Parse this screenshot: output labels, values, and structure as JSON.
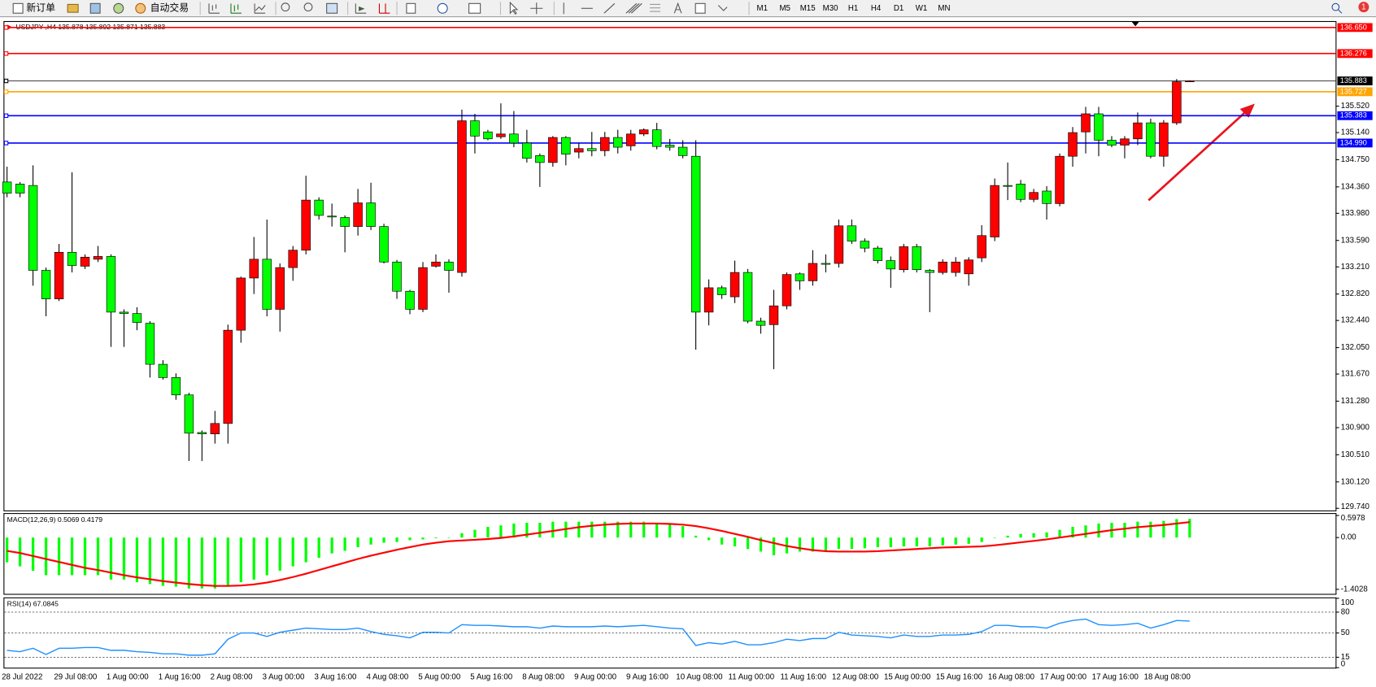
{
  "toolbar": {
    "new_order": "新订单",
    "auto_trading": "自动交易",
    "timeframes": [
      "M1",
      "M5",
      "M15",
      "M30",
      "H1",
      "H4",
      "D1",
      "W1",
      "MN"
    ],
    "notifications": 1
  },
  "chart_data": [
    {
      "type": "candlestick",
      "title": "USDJPY-,H4  135.878 135.892 135.871 135.883",
      "up_color": "#ff0000",
      "down_color": "#00ff00",
      "categories": [
        "28 Jul 2022",
        null,
        null,
        null,
        null,
        "29 Jul 08:00",
        null,
        null,
        null,
        "1 Aug 00:00",
        null,
        null,
        null,
        "1 Aug 16:00",
        null,
        null,
        null,
        "2 Aug 08:00",
        null,
        null,
        null,
        "3 Aug 00:00",
        null,
        null,
        null,
        "3 Aug 16:00",
        null,
        null,
        null,
        "4 Aug 08:00",
        null,
        null,
        null,
        "5 Aug 00:00",
        null,
        null,
        null,
        "5 Aug 16:00",
        null,
        null,
        null,
        "8 Aug 08:00",
        null,
        null,
        null,
        "9 Aug 00:00",
        null,
        null,
        null,
        "9 Aug 16:00",
        null,
        null,
        null,
        "10 Aug 08:00",
        null,
        null,
        null,
        "11 Aug 00:00",
        null,
        null,
        null,
        "11 Aug 16:00",
        null,
        null,
        null,
        "12 Aug 08:00",
        null,
        null,
        null,
        "15 Aug 00:00",
        null,
        null,
        null,
        "15 Aug 16:00",
        null,
        null,
        null,
        "16 Aug 08:00",
        null,
        null,
        null,
        "17 Aug 00:00",
        null,
        null,
        null,
        "17 Aug 16:00",
        null,
        null,
        null,
        "18 Aug 08:00",
        null,
        null
      ],
      "open": [
        134.43,
        134.4,
        134.38,
        133.16,
        132.75,
        133.42,
        133.22,
        133.32,
        133.36,
        132.56,
        132.54,
        132.4,
        131.81,
        131.62,
        131.37,
        130.83,
        130.81,
        130.96,
        132.3,
        133.05,
        133.32,
        132.6,
        133.2,
        133.45,
        134.17,
        133.94,
        133.92,
        133.79,
        134.13,
        133.79,
        133.28,
        132.86,
        132.6,
        133.22,
        133.28,
        133.13,
        135.31,
        135.15,
        135.08,
        135.12,
        134.99,
        134.81,
        134.71,
        135.07,
        134.86,
        134.91,
        134.88,
        135.07,
        134.95,
        135.12,
        135.18,
        134.96,
        134.93,
        134.8,
        132.56,
        132.91,
        132.78,
        133.13,
        132.43,
        132.38,
        132.65,
        133.11,
        133.01,
        133.26,
        133.26,
        133.8,
        133.58,
        133.48,
        133.3,
        133.17,
        133.5,
        133.16,
        133.13,
        133.13,
        133.11,
        133.34,
        133.64,
        134.38,
        134.4,
        134.18,
        134.3,
        134.12,
        134.8,
        135.15,
        135.41,
        135.03,
        134.96,
        135.05,
        135.28,
        134.8,
        135.28,
        135.878
      ],
      "high": [
        134.65,
        134.43,
        134.67,
        133.2,
        133.54,
        134.57,
        133.39,
        133.51,
        133.39,
        132.6,
        132.63,
        132.43,
        131.87,
        131.68,
        131.4,
        130.86,
        131.14,
        132.38,
        133.07,
        133.64,
        133.89,
        133.26,
        133.51,
        134.52,
        134.21,
        134.12,
        133.95,
        134.33,
        134.42,
        133.83,
        133.31,
        132.88,
        133.28,
        133.39,
        133.32,
        135.47,
        135.41,
        135.18,
        135.56,
        135.45,
        135.18,
        134.84,
        135.09,
        135.09,
        134.99,
        135.15,
        135.15,
        135.18,
        135.18,
        135.2,
        135.28,
        135.05,
        135.03,
        135.03,
        133.03,
        132.94,
        133.3,
        133.18,
        132.48,
        132.88,
        133.13,
        133.13,
        133.45,
        133.39,
        133.89,
        133.89,
        133.62,
        133.51,
        133.36,
        133.54,
        133.54,
        133.18,
        133.32,
        133.35,
        133.35,
        133.81,
        134.48,
        134.71,
        134.46,
        134.33,
        134.37,
        134.84,
        135.22,
        135.51,
        135.51,
        135.09,
        135.09,
        135.43,
        135.34,
        135.32,
        135.91,
        135.892
      ],
      "low": [
        134.21,
        134.21,
        132.94,
        132.5,
        132.72,
        133.13,
        133.18,
        133.28,
        132.06,
        132.06,
        132.3,
        131.62,
        131.59,
        131.3,
        130.42,
        130.42,
        130.67,
        130.67,
        132.12,
        132.82,
        132.5,
        132.28,
        133.01,
        133.39,
        133.89,
        133.79,
        133.42,
        133.66,
        133.74,
        133.26,
        132.75,
        132.53,
        132.56,
        133.2,
        132.84,
        133.07,
        134.84,
        135.03,
        135.05,
        134.93,
        134.71,
        134.36,
        134.65,
        134.67,
        134.77,
        134.8,
        134.8,
        134.84,
        134.88,
        135.09,
        134.9,
        134.88,
        134.77,
        132.02,
        132.37,
        132.75,
        132.69,
        132.4,
        132.25,
        131.74,
        132.6,
        132.88,
        132.94,
        133.13,
        133.2,
        133.54,
        133.42,
        133.26,
        132.91,
        133.13,
        133.13,
        132.56,
        133.1,
        133.07,
        132.94,
        133.28,
        133.58,
        134.17,
        134.14,
        134.14,
        133.89,
        134.08,
        134.65,
        134.84,
        134.8,
        134.93,
        134.77,
        134.96,
        134.77,
        134.65,
        135.25,
        135.871
      ],
      "close": [
        134.27,
        134.27,
        133.16,
        132.75,
        133.42,
        133.23,
        133.35,
        133.36,
        132.56,
        132.54,
        132.41,
        131.81,
        131.62,
        131.37,
        130.82,
        130.81,
        130.96,
        132.3,
        133.05,
        133.32,
        132.6,
        133.2,
        133.45,
        134.17,
        133.95,
        133.93,
        133.79,
        134.13,
        133.79,
        133.28,
        132.86,
        132.6,
        133.2,
        133.28,
        133.16,
        135.31,
        135.09,
        135.05,
        135.12,
        134.99,
        134.77,
        134.71,
        135.07,
        134.83,
        134.91,
        134.88,
        135.07,
        134.93,
        135.12,
        135.18,
        134.94,
        134.93,
        134.81,
        132.56,
        132.91,
        132.81,
        133.13,
        132.43,
        132.37,
        132.65,
        133.1,
        133.01,
        133.26,
        133.25,
        133.8,
        133.58,
        133.48,
        133.3,
        133.18,
        133.5,
        133.17,
        133.13,
        133.28,
        133.28,
        133.31,
        133.66,
        134.38,
        134.37,
        134.18,
        134.28,
        134.12,
        134.8,
        135.14,
        135.41,
        135.03,
        134.96,
        135.05,
        135.28,
        134.8,
        135.28,
        135.87,
        135.883
      ],
      "ylim": [
        129.71,
        136.73
      ],
      "yticks": [
        {
          "value": 135.52,
          "label": "135.520"
        },
        {
          "value": 135.14,
          "label": "135.140"
        },
        {
          "value": 134.75,
          "label": "134.750"
        },
        {
          "value": 134.36,
          "label": "134.360"
        },
        {
          "value": 133.98,
          "label": "133.980"
        },
        {
          "value": 133.59,
          "label": "133.590"
        },
        {
          "value": 133.21,
          "label": "133.210"
        },
        {
          "value": 132.82,
          "label": "132.820"
        },
        {
          "value": 132.44,
          "label": "132.440"
        },
        {
          "value": 132.05,
          "label": "132.050"
        },
        {
          "value": 131.67,
          "label": "131.670"
        },
        {
          "value": 131.28,
          "label": "131.280"
        },
        {
          "value": 130.9,
          "label": "130.900"
        },
        {
          "value": 130.51,
          "label": "130.510"
        },
        {
          "value": 130.12,
          "label": "130.120"
        },
        {
          "value": 129.74,
          "label": "129.740"
        }
      ],
      "levels": [
        {
          "value": 136.65,
          "label": "136.650",
          "color": "#ff0000"
        },
        {
          "value": 136.276,
          "color": "#ff0000"
        },
        {
          "value": 135.883,
          "color": "#000000"
        },
        {
          "value": 135.727,
          "color": "#ffa500"
        },
        {
          "value": 135.383,
          "color": "#0000ff"
        },
        {
          "value": 134.99,
          "label": "134.990",
          "color": "#0000ff"
        }
      ]
    },
    {
      "type": "macd",
      "title": "MACD(12,26,9) 0.5069 0.4179",
      "series": [
        {
          "kind": "bar",
          "color": "#00ff00",
          "values": [
            -0.67,
            -0.78,
            -0.9,
            -1.02,
            -1.02,
            -1.02,
            -1.02,
            -1.02,
            -1.14,
            -1.14,
            -1.21,
            -1.26,
            -1.31,
            -1.33,
            -1.38,
            -1.38,
            -1.38,
            -1.33,
            -1.21,
            -1.14,
            -1.02,
            -0.9,
            -0.78,
            -0.67,
            -0.55,
            -0.43,
            -0.36,
            -0.26,
            -0.19,
            -0.14,
            -0.12,
            -0.07,
            -0.05,
            -0.02,
            0.0,
            0.12,
            0.21,
            0.29,
            0.33,
            0.38,
            0.4,
            0.4,
            0.43,
            0.43,
            0.43,
            0.43,
            0.43,
            0.43,
            0.43,
            0.43,
            0.4,
            0.36,
            0.31,
            0.05,
            -0.07,
            -0.19,
            -0.24,
            -0.31,
            -0.38,
            -0.48,
            -0.43,
            -0.38,
            -0.38,
            -0.36,
            -0.31,
            -0.31,
            -0.29,
            -0.26,
            -0.26,
            -0.24,
            -0.24,
            -0.24,
            -0.21,
            -0.19,
            -0.17,
            -0.12,
            0.0,
            0.05,
            0.1,
            0.12,
            0.14,
            0.21,
            0.29,
            0.33,
            0.38,
            0.4,
            0.4,
            0.43,
            0.43,
            0.45,
            0.5,
            0.5069
          ]
        },
        {
          "kind": "line",
          "color": "#ff0000",
          "values": [
            -0.36,
            -0.42,
            -0.5,
            -0.58,
            -0.66,
            -0.74,
            -0.82,
            -0.88,
            -0.95,
            -1.02,
            -1.08,
            -1.13,
            -1.18,
            -1.22,
            -1.26,
            -1.29,
            -1.31,
            -1.31,
            -1.3,
            -1.27,
            -1.22,
            -1.15,
            -1.07,
            -0.98,
            -0.88,
            -0.78,
            -0.68,
            -0.58,
            -0.49,
            -0.41,
            -0.33,
            -0.26,
            -0.19,
            -0.14,
            -0.1,
            -0.08,
            -0.06,
            -0.04,
            -0.01,
            0.03,
            0.08,
            0.13,
            0.18,
            0.23,
            0.28,
            0.32,
            0.35,
            0.37,
            0.38,
            0.38,
            0.38,
            0.37,
            0.35,
            0.31,
            0.25,
            0.18,
            0.1,
            0.02,
            -0.07,
            -0.15,
            -0.23,
            -0.29,
            -0.34,
            -0.37,
            -0.38,
            -0.38,
            -0.38,
            -0.37,
            -0.35,
            -0.33,
            -0.31,
            -0.29,
            -0.27,
            -0.26,
            -0.25,
            -0.24,
            -0.21,
            -0.17,
            -0.13,
            -0.09,
            -0.05,
            0.0,
            0.05,
            0.1,
            0.15,
            0.2,
            0.24,
            0.28,
            0.31,
            0.34,
            0.38,
            0.4179
          ]
        }
      ],
      "ylim": [
        -1.55,
        0.64
      ],
      "yticks": [
        0.5978,
        {
          "value": 0,
          "label": "0.00"
        },
        -1.4028
      ]
    },
    {
      "type": "line",
      "title": "RSI(14) 67.0845",
      "series": [
        {
          "color": "#1e90ff",
          "values": [
            25,
            23,
            28,
            19,
            28,
            28,
            29,
            29,
            25,
            25,
            23,
            22,
            20,
            20,
            18,
            18,
            20,
            41,
            50,
            50,
            45,
            51,
            54,
            57,
            56,
            55,
            55,
            57,
            52,
            48,
            46,
            43,
            51,
            51,
            50,
            62,
            61,
            61,
            60,
            59,
            59,
            57,
            60,
            59,
            59,
            59,
            60,
            59,
            60,
            61,
            59,
            57,
            56,
            32,
            36,
            34,
            38,
            33,
            33,
            36,
            41,
            39,
            42,
            42,
            51,
            47,
            46,
            45,
            43,
            47,
            45,
            45,
            47,
            47,
            48,
            52,
            61,
            61,
            59,
            59,
            57,
            64,
            68,
            70,
            62,
            61,
            62,
            64,
            57,
            62,
            68,
            67.0845
          ]
        }
      ],
      "ylim": [
        0,
        100
      ],
      "yticks": [
        0,
        15,
        50,
        80,
        100
      ],
      "levels": [
        80,
        50,
        15
      ]
    }
  ]
}
